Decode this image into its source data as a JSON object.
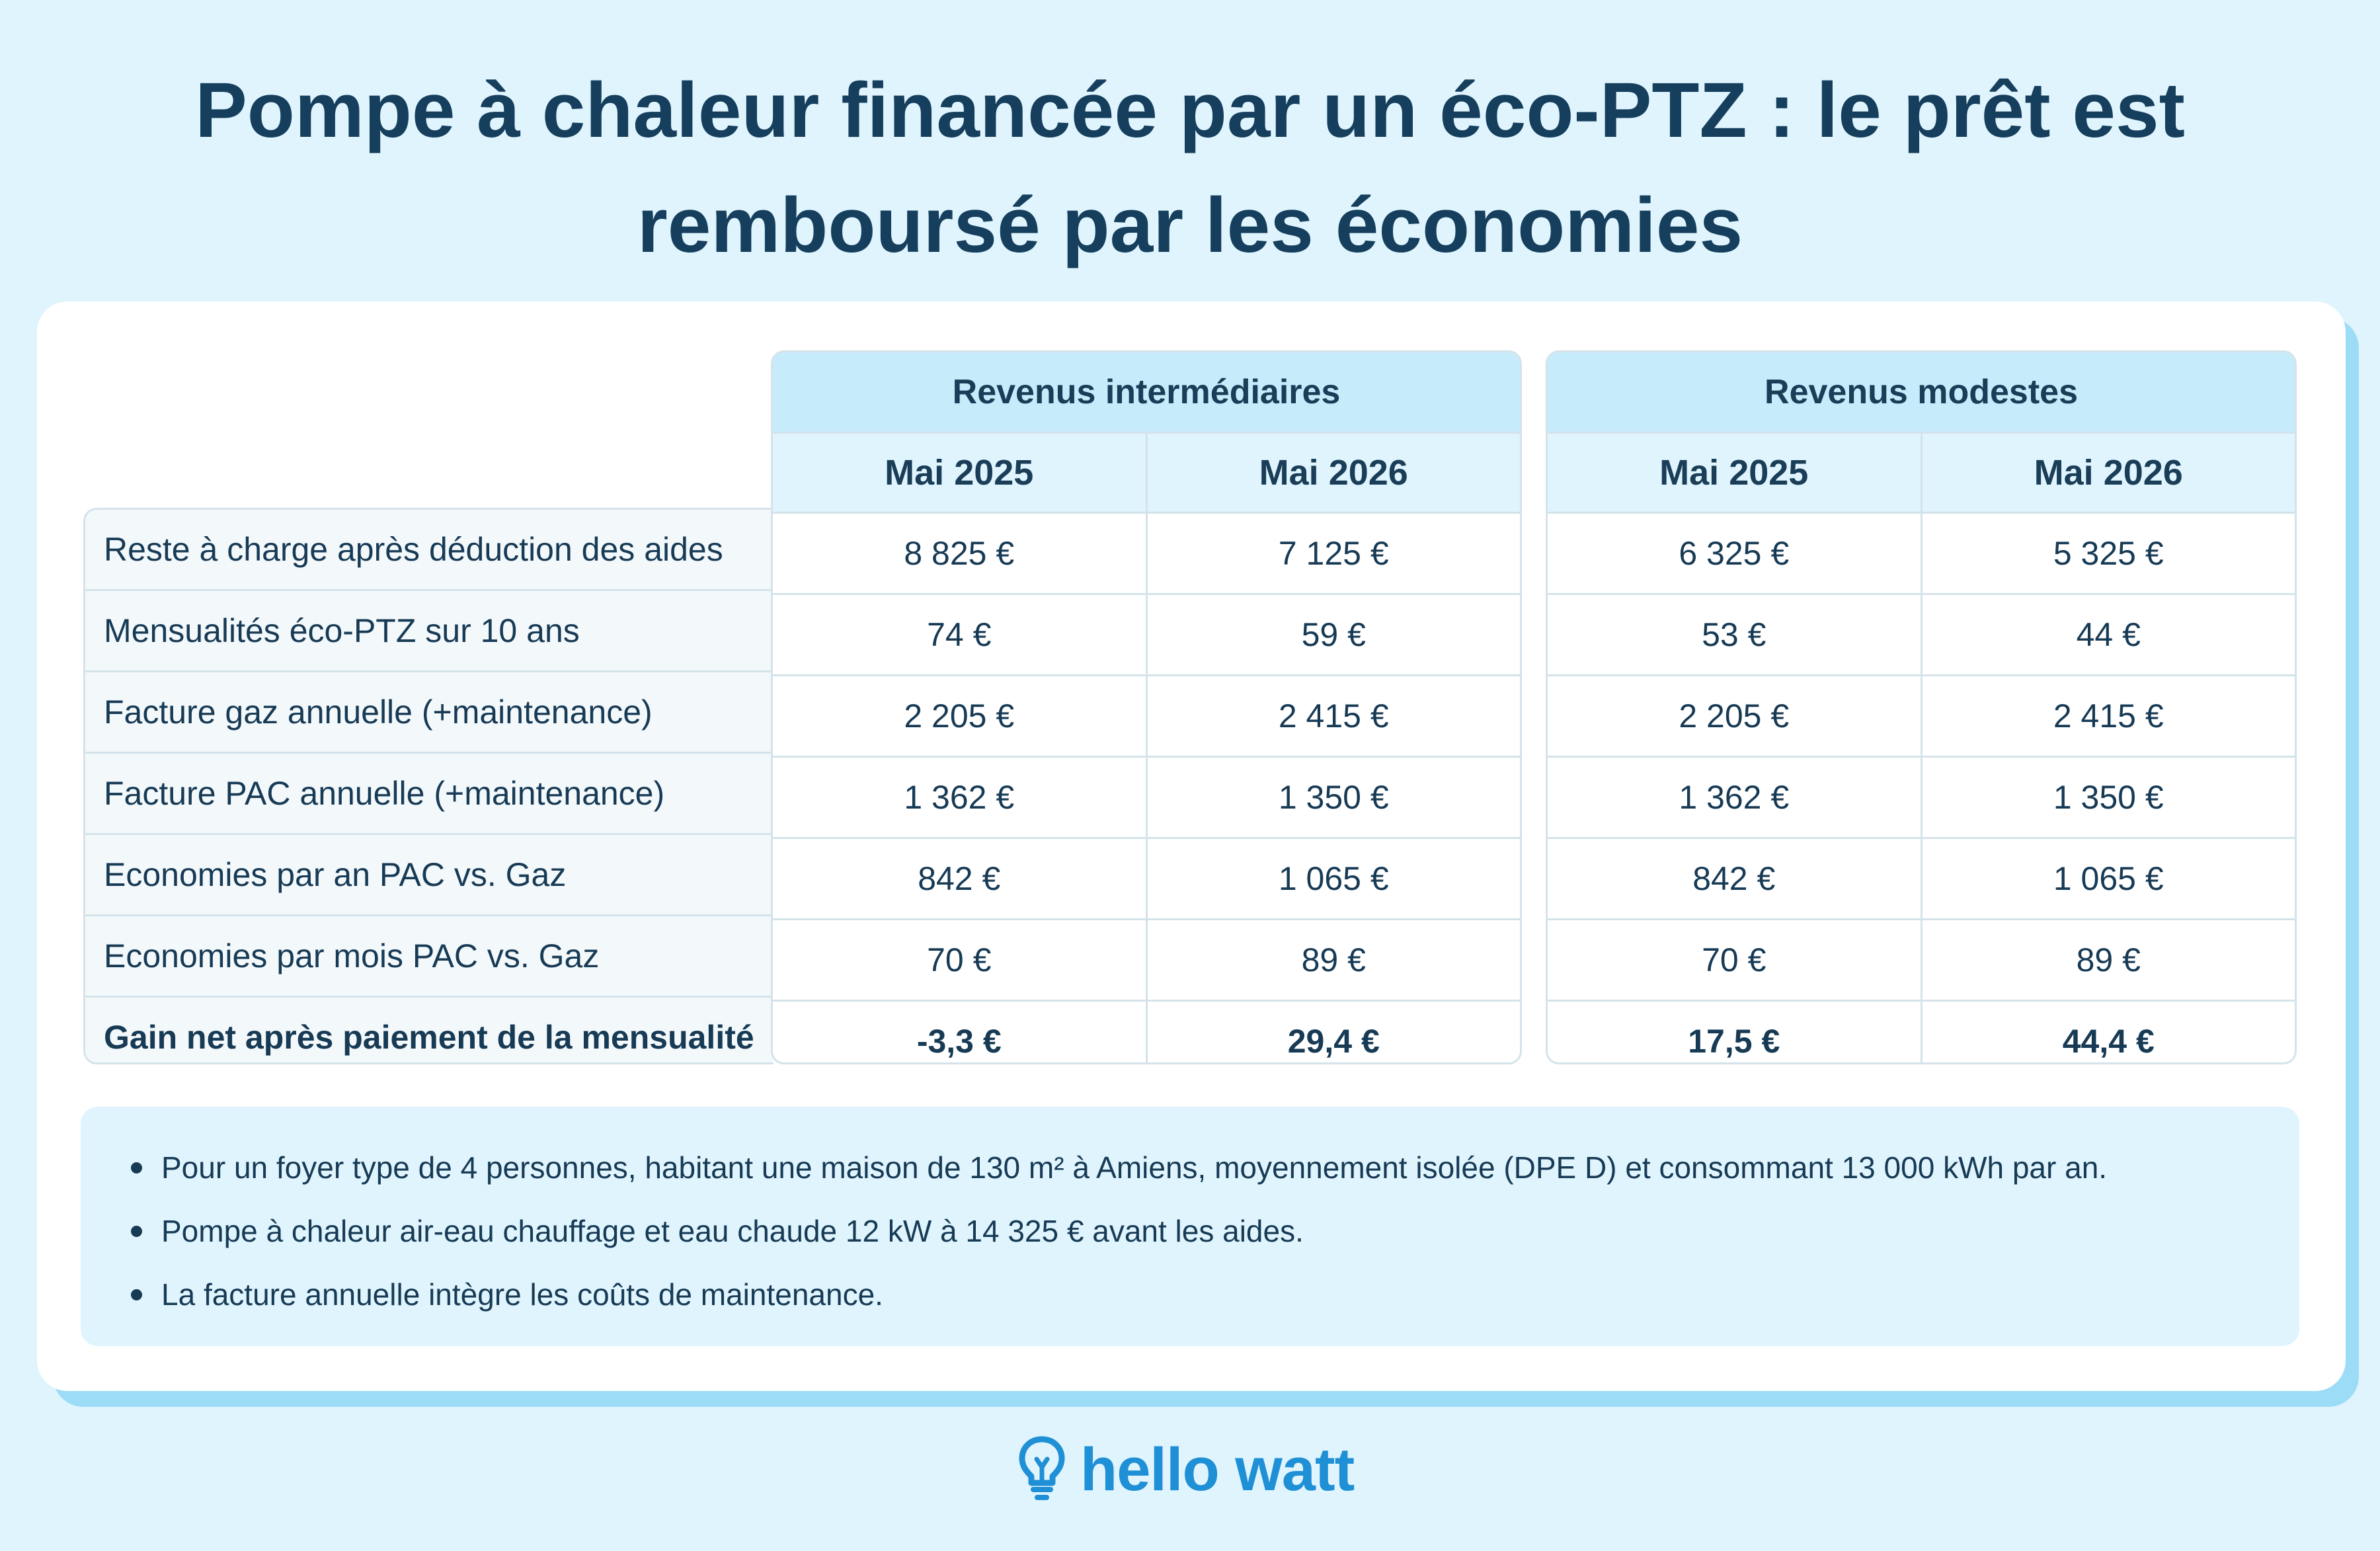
{
  "title": {
    "line1": "Pompe à chaleur financée par un éco-PTZ : le prêt est",
    "line2": "remboursé par les économies"
  },
  "groups": [
    {
      "label": "Revenus intermédiaires",
      "columns": [
        "Mai 2025",
        "Mai 2026"
      ]
    },
    {
      "label": "Revenus modestes",
      "columns": [
        "Mai 2025",
        "Mai 2026"
      ]
    }
  ],
  "rows": [
    {
      "label": "Reste à charge après déduction des aides",
      "values": [
        "8 825 €",
        "7 125 €",
        "6 325 €",
        "5 325 €"
      ]
    },
    {
      "label": "Mensualités éco-PTZ sur 10 ans",
      "values": [
        "74 €",
        "59 €",
        "53 €",
        "44 €"
      ]
    },
    {
      "label": "Facture gaz annuelle (+maintenance)",
      "values": [
        "2 205 €",
        "2 415 €",
        "2 205 €",
        "2 415 €"
      ]
    },
    {
      "label": "Facture PAC annuelle (+maintenance)",
      "values": [
        "1 362 €",
        "1 350 €",
        "1 362 €",
        "1 350 €"
      ]
    },
    {
      "label": "Economies par an PAC vs. Gaz",
      "values": [
        "842 €",
        "1 065 €",
        "842 €",
        "1 065 €"
      ]
    },
    {
      "label": "Economies par mois PAC vs. Gaz",
      "values": [
        "70 €",
        "89 €",
        "70 €",
        "89 €"
      ]
    },
    {
      "label": "Gain net après paiement de la mensualité",
      "values": [
        "-3,3 €",
        "29,4 €",
        "17,5 €",
        "44,4 €"
      ]
    }
  ],
  "notes": [
    "Pour un foyer type de 4 personnes, habitant une maison de 130 m² à Amiens, moyennement isolée (DPE D) et consommant 13 000 kWh par an.",
    "Pompe à chaleur air-eau chauffage et eau chaude 12 kW à 14 325 € avant les aides.",
    "La facture annuelle intègre les coûts de maintenance."
  ],
  "brand": {
    "name": "hello watt",
    "icon": "lightbulb-icon",
    "color": "#1f8fd6"
  },
  "colors": {
    "background": "#dff4fd",
    "header": "#c6ebfa",
    "card_shadow": "#9ddcf6",
    "text": "#163f5e"
  }
}
